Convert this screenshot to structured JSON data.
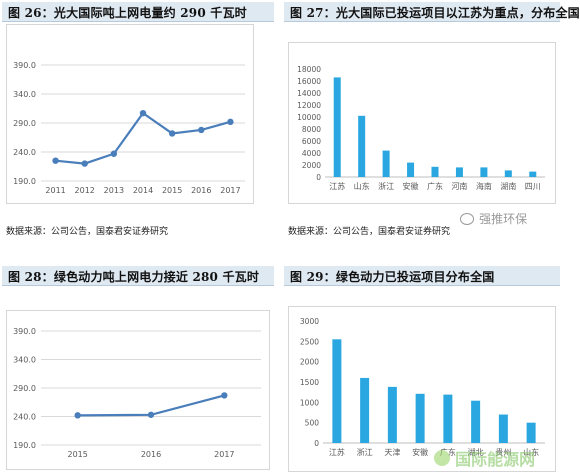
{
  "panels": [
    {
      "title": "图 26：光大国际吨上网电量约 290 千瓦时",
      "source": "数据来源：公司公告，国泰君安证券研究"
    },
    {
      "title": "图 27：光大国际已投运项目以江苏为重点，分布全国",
      "source": "数据来源：公司公告，国泰君安证券研究"
    },
    {
      "title": "图 28：绿色动力吨上网电力接近 280 千瓦时",
      "source": ""
    },
    {
      "title": "图 29：绿色动力已投运项目分布全国",
      "source": ""
    }
  ],
  "watermarks": {
    "wechat": "强推环保",
    "site": "国际能源网"
  },
  "colors": {
    "line": "#4a7ebb",
    "marker": "#4a7ebb",
    "bar": "#2aa7e0",
    "grid": "#d9d9d9",
    "axis_text": "#595959"
  },
  "chart_data": [
    {
      "type": "line",
      "categories": [
        "2011",
        "2012",
        "2013",
        "2014",
        "2015",
        "2016",
        "2017"
      ],
      "values": [
        225,
        220,
        237,
        307,
        272,
        278,
        292
      ],
      "yticks": [
        "190.0",
        "240.0",
        "290.0",
        "340.0",
        "390.0"
      ],
      "ylim": [
        190,
        390
      ],
      "grid": true
    },
    {
      "type": "bar",
      "categories": [
        "江苏",
        "山东",
        "浙江",
        "安徽",
        "广东",
        "河南",
        "海南",
        "湖南",
        "四川"
      ],
      "values": [
        16600,
        10200,
        4400,
        2400,
        1700,
        1600,
        1600,
        1100,
        900
      ],
      "yticks": [
        "0",
        "2000",
        "4000",
        "6000",
        "8000",
        "10000",
        "12000",
        "14000",
        "16000",
        "18000"
      ],
      "ylim": [
        0,
        18000
      ],
      "grid": false
    },
    {
      "type": "line",
      "categories": [
        "2015",
        "2016",
        "2017"
      ],
      "values": [
        242,
        243,
        277
      ],
      "yticks": [
        "190.0",
        "240.0",
        "290.0",
        "340.0",
        "390.0"
      ],
      "ylim": [
        190,
        390
      ],
      "grid": true
    },
    {
      "type": "bar",
      "categories": [
        "江苏",
        "浙江",
        "天津",
        "安徽",
        "广东",
        "湖北",
        "贵州",
        "山东"
      ],
      "values": [
        2550,
        1600,
        1380,
        1210,
        1190,
        1040,
        700,
        500
      ],
      "yticks": [
        "0",
        "500",
        "1000",
        "1500",
        "2000",
        "2500",
        "3000"
      ],
      "ylim": [
        0,
        3000
      ],
      "grid": false
    }
  ]
}
